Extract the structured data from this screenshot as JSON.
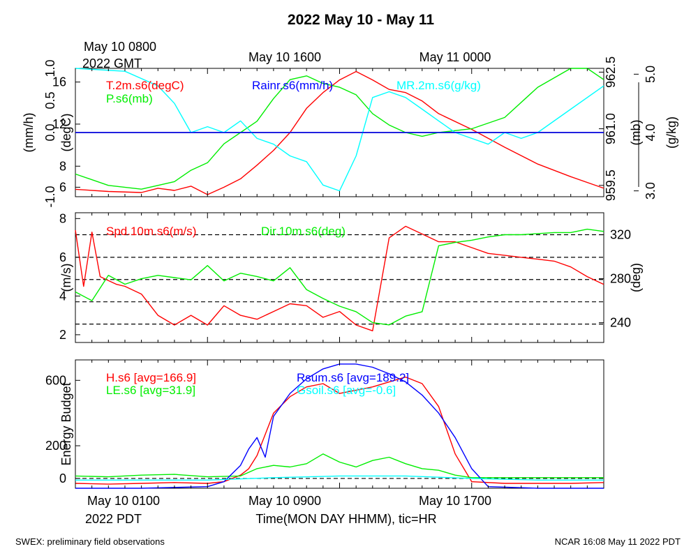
{
  "title": "2022 May 10 - May 11",
  "gmt_label": [
    "May 10 0800",
    "2022 GMT"
  ],
  "gmt_ticks": [
    "May 10 1600",
    "May 11 0000"
  ],
  "pdt_ticks": [
    "May 10 0100",
    "May 10 0900",
    "May 10 1700"
  ],
  "pdt_year": "2022 PDT",
  "xlabel": "Time(MON DAY HHMM), tic=HR",
  "footer_left": "SWEX: preliminary field observations",
  "footer_right": "NCAR 16:08 May 11 2022 PDT",
  "colors": {
    "red": "#ff0000",
    "green": "#00ee00",
    "blue": "#0000ff",
    "cyan": "#00ffff",
    "black": "#000000"
  },
  "chart_data": [
    {
      "type": "line",
      "panel": "top",
      "x_range_hours": [
        0,
        32
      ],
      "axes": {
        "rain": {
          "label": "(mm/h)",
          "ticks": [
            "1.0",
            "0.5",
            "0.0",
            "-1.0"
          ],
          "tick_values": [
            1.0,
            0.5,
            0.0,
            -1.0
          ],
          "range": [
            -1.0,
            1.0
          ],
          "side": "left-outer"
        },
        "temp": {
          "label": "(degC)",
          "ticks": [
            "16",
            "12",
            "8",
            "6"
          ],
          "tick_values": [
            16,
            12,
            8,
            6
          ],
          "range": [
            5.1,
            17.3
          ],
          "side": "left-inner"
        },
        "pres": {
          "label": "(mb)",
          "ticks": [
            "962.5",
            "961.0",
            "959.5"
          ],
          "tick_values": [
            962.5,
            961.0,
            959.5
          ],
          "range": [
            959.2,
            962.6
          ],
          "side": "right-inner"
        },
        "mr": {
          "label": "(g/kg)",
          "ticks": [
            "5.0",
            "4.0",
            "3.0"
          ],
          "tick_values": [
            5.0,
            4.0,
            3.0
          ],
          "range": [
            2.9,
            5.1
          ],
          "side": "right-outer"
        }
      },
      "series": [
        {
          "name": "T.2m.s6(degC)",
          "color": "#ff0000",
          "axis": "temp",
          "x": [
            0,
            2,
            4,
            5,
            6,
            7,
            8,
            9,
            10,
            11,
            12,
            13,
            14,
            15,
            16,
            17,
            18,
            19,
            20,
            21,
            22,
            24,
            26,
            28,
            30,
            32
          ],
          "y": [
            5.8,
            5.6,
            5.5,
            5.9,
            5.7,
            6.1,
            5.3,
            6.0,
            6.8,
            8.1,
            9.5,
            11.2,
            13.5,
            15.0,
            16.2,
            17.0,
            16.2,
            15.3,
            15.0,
            14.2,
            13.0,
            11.5,
            9.8,
            8.2,
            7.0,
            5.9
          ]
        },
        {
          "name": "P.s6(mb)",
          "color": "#00ee00",
          "axis": "pres",
          "x": [
            0,
            2,
            4,
            5,
            6,
            7,
            8,
            9,
            10,
            11,
            12,
            13,
            14,
            15,
            16,
            17,
            18,
            19,
            20,
            21,
            22,
            24,
            26,
            28,
            30,
            31,
            32
          ],
          "y": [
            959.8,
            959.5,
            959.4,
            959.5,
            959.6,
            959.9,
            960.1,
            960.6,
            960.9,
            961.2,
            961.8,
            962.3,
            962.4,
            962.2,
            962.1,
            961.9,
            961.4,
            961.1,
            960.9,
            960.8,
            960.9,
            961.0,
            961.3,
            962.1,
            962.6,
            962.6,
            962.3
          ]
        },
        {
          "name": "MR.2m.s6(g/kg)",
          "color": "#00ffff",
          "axis": "mr",
          "x": [
            0,
            3,
            5,
            6,
            7,
            8,
            9,
            10,
            11,
            12,
            13,
            14,
            15,
            16,
            17,
            18,
            19,
            20,
            21,
            22,
            23,
            24,
            25,
            26,
            27,
            28,
            30,
            32
          ],
          "y": [
            5.1,
            5.05,
            4.8,
            4.5,
            4.0,
            4.1,
            4.0,
            4.2,
            3.9,
            3.8,
            3.6,
            3.5,
            3.1,
            3.0,
            3.6,
            4.6,
            4.7,
            4.6,
            4.4,
            4.2,
            4.0,
            3.9,
            3.8,
            4.0,
            3.9,
            4.0,
            4.4,
            4.8
          ]
        },
        {
          "name": "Rainr.s6(mm/h)",
          "color": "#0000ff",
          "axis": "rain",
          "x": [
            0,
            32
          ],
          "y": [
            0.0,
            0.0
          ]
        }
      ],
      "ref_lines": [
        {
          "axis": "rain",
          "value": 0.0,
          "style": "solid"
        }
      ]
    },
    {
      "type": "line",
      "panel": "middle",
      "x_range_hours": [
        0,
        32
      ],
      "axes": {
        "spd": {
          "label": "(m/s)",
          "ticks": [
            "8",
            "6",
            "4",
            "2"
          ],
          "tick_values": [
            8,
            6,
            4,
            2
          ],
          "range": [
            1.6,
            8.3
          ],
          "side": "left"
        },
        "dir": {
          "label": "(deg)",
          "ticks": [
            "320",
            "280",
            "240"
          ],
          "tick_values": [
            320,
            280,
            240
          ],
          "range": [
            222,
            340
          ],
          "side": "right"
        }
      },
      "series": [
        {
          "name": "Spd.10m.s6(m/s)",
          "color": "#ff0000",
          "axis": "spd",
          "x": [
            0,
            0.5,
            1,
            1.5,
            2,
            2.5,
            3,
            4,
            5,
            6,
            7,
            8,
            9,
            10,
            11,
            12,
            13,
            14,
            15,
            16,
            17,
            18,
            19,
            20,
            21,
            22,
            23,
            24,
            25,
            26,
            27,
            28,
            29,
            30,
            31,
            32
          ],
          "y": [
            7.4,
            4.5,
            7.3,
            5.0,
            4.8,
            4.6,
            4.5,
            4.1,
            3.0,
            2.5,
            3.0,
            2.5,
            3.5,
            3.0,
            2.8,
            3.2,
            3.6,
            3.5,
            2.9,
            3.2,
            2.5,
            2.2,
            7.0,
            7.6,
            7.2,
            6.8,
            6.8,
            6.5,
            6.2,
            6.1,
            6.0,
            5.9,
            5.8,
            5.5,
            5.0,
            4.6
          ]
        },
        {
          "name": "Dir.10m.s6(deg)",
          "color": "#00ee00",
          "axis": "dir",
          "x": [
            0,
            1,
            2,
            3,
            4,
            5,
            6,
            7,
            8,
            9,
            10,
            11,
            12,
            13,
            14,
            15,
            16,
            17,
            18,
            19,
            20,
            21,
            22,
            23,
            24,
            25,
            26,
            27,
            28,
            29,
            30,
            31,
            32
          ],
          "y": [
            268,
            260,
            283,
            275,
            280,
            283,
            281,
            279,
            292,
            278,
            285,
            282,
            278,
            290,
            270,
            262,
            255,
            250,
            240,
            238,
            246,
            250,
            310,
            313,
            315,
            318,
            320,
            320,
            321,
            322,
            322,
            325,
            323
          ]
        }
      ],
      "ref_lines": [
        {
          "axis": "dir",
          "value": 320,
          "style": "dashed"
        },
        {
          "axis": "spd",
          "value": 6.0,
          "style": "dashed"
        },
        {
          "axis": "spd",
          "value": 4.85,
          "style": "dashed"
        },
        {
          "axis": "spd",
          "value": 3.7,
          "style": "dashed"
        },
        {
          "axis": "spd",
          "value": 2.55,
          "style": "dashed"
        }
      ]
    },
    {
      "type": "line",
      "panel": "bottom",
      "x_range_hours": [
        0,
        32
      ],
      "ylabel": "Energy Budget",
      "axes": {
        "energy": {
          "ticks": [
            "600",
            "200",
            "0"
          ],
          "tick_values": [
            600,
            200,
            0
          ],
          "range": [
            -60,
            725
          ],
          "side": "left"
        }
      },
      "series": [
        {
          "name": "H.s6 [avg=166.9]",
          "color": "#ff0000",
          "axis": "energy",
          "x": [
            0,
            2,
            4,
            6,
            8,
            9,
            10,
            10.5,
            11,
            12,
            13,
            14,
            15,
            16,
            17,
            18,
            19,
            20,
            21,
            22,
            23,
            24,
            26,
            28,
            30,
            32
          ],
          "y": [
            -30,
            -35,
            -30,
            -25,
            -30,
            -20,
            20,
            60,
            140,
            400,
            500,
            560,
            580,
            520,
            540,
            560,
            590,
            620,
            580,
            440,
            150,
            -20,
            -30,
            -30,
            -30,
            -25
          ]
        },
        {
          "name": "LE.s6 [avg=31.9]",
          "color": "#00ee00",
          "axis": "energy",
          "x": [
            0,
            2,
            4,
            6,
            8,
            10,
            11,
            12,
            13,
            14,
            15,
            16,
            17,
            18,
            19,
            20,
            21,
            22,
            23,
            24,
            26,
            28,
            30,
            32
          ],
          "y": [
            15,
            10,
            20,
            25,
            10,
            15,
            60,
            80,
            70,
            90,
            150,
            100,
            70,
            110,
            130,
            90,
            60,
            50,
            20,
            5,
            5,
            5,
            5,
            5
          ]
        },
        {
          "name": "Rsum.s6 [avg=189.2]",
          "color": "#0000ff",
          "axis": "energy",
          "x": [
            0,
            4,
            8,
            9,
            10,
            10.5,
            11,
            11.5,
            12,
            13,
            14,
            15,
            16,
            17,
            18,
            19,
            20,
            21,
            22,
            23,
            24,
            25,
            28,
            32
          ],
          "y": [
            -60,
            -60,
            -50,
            -20,
            80,
            180,
            250,
            130,
            380,
            520,
            610,
            670,
            700,
            700,
            680,
            640,
            590,
            510,
            400,
            250,
            60,
            -50,
            -60,
            -60
          ]
        },
        {
          "name": "Gsoil.s6 [avg=-0.6]",
          "color": "#00ffff",
          "axis": "energy",
          "x": [
            0,
            8,
            12,
            16,
            20,
            24,
            28,
            32
          ],
          "y": [
            -10,
            -10,
            5,
            15,
            15,
            0,
            -10,
            -10
          ]
        }
      ],
      "ref_lines": [
        {
          "axis": "energy",
          "value": 0,
          "style": "dashed"
        }
      ]
    }
  ]
}
